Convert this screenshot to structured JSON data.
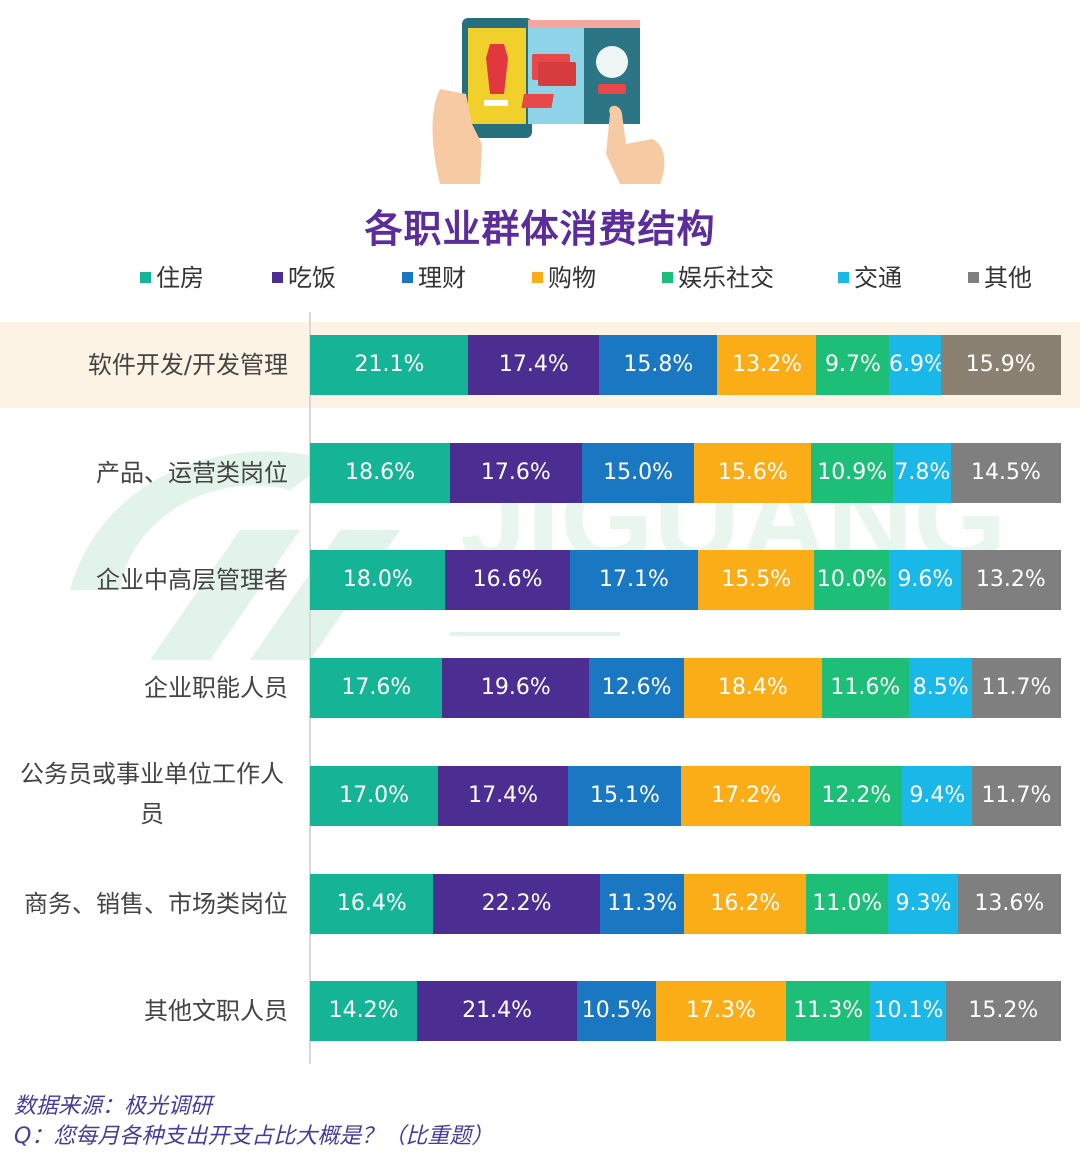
{
  "title": "各职业群体消费结构",
  "legend": [
    {
      "label": "住房",
      "color": "#16b496"
    },
    {
      "label": "吃饭",
      "color": "#4c2d91"
    },
    {
      "label": "理财",
      "color": "#1a78c2"
    },
    {
      "label": "购物",
      "color": "#fbad17"
    },
    {
      "label": "娱乐社交",
      "color": "#1dbf78"
    },
    {
      "label": "交通",
      "color": "#1ab8e8"
    },
    {
      "label": "其他",
      "color": "#7f7f7f"
    }
  ],
  "chart_data": {
    "type": "bar",
    "orientation": "horizontal",
    "stacked": true,
    "categories": [
      "软件开发/开发管理",
      "产品、运营类岗位",
      "企业中高层管理者",
      "企业职能人员",
      "公务员或事业单位工作人员",
      "商务、销售、市场类岗位",
      "其他文职人员"
    ],
    "series": [
      {
        "name": "住房",
        "values": [
          21.1,
          18.6,
          18.0,
          17.6,
          17.0,
          16.4,
          14.2
        ]
      },
      {
        "name": "吃饭",
        "values": [
          17.4,
          17.6,
          16.6,
          19.6,
          17.4,
          22.2,
          21.4
        ]
      },
      {
        "name": "理财",
        "values": [
          15.8,
          15.0,
          17.1,
          12.6,
          15.1,
          11.3,
          10.5
        ]
      },
      {
        "name": "购物",
        "values": [
          13.2,
          15.6,
          15.5,
          18.4,
          17.2,
          16.2,
          17.3
        ]
      },
      {
        "name": "娱乐社交",
        "values": [
          9.7,
          10.9,
          10.0,
          11.6,
          12.2,
          11.0,
          11.3
        ]
      },
      {
        "name": "交通",
        "values": [
          6.9,
          7.8,
          9.6,
          8.5,
          9.4,
          9.3,
          10.1
        ]
      },
      {
        "name": "其他",
        "values": [
          15.9,
          14.5,
          13.2,
          11.7,
          11.7,
          13.6,
          15.2
        ]
      }
    ],
    "value_format": "percent_1dp",
    "highlighted_category": "软件开发/开发管理",
    "highlighted_other_color": "#8b8173",
    "legend_position": "top",
    "grid": false
  },
  "source": {
    "line1": "数据来源：极光调研",
    "line2": "Q：您每月各种支出开支占比大概是？（比重题）"
  }
}
